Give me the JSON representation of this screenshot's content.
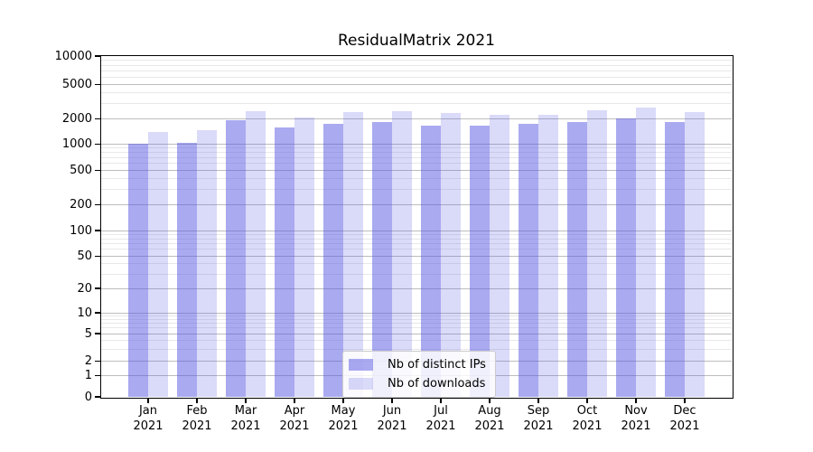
{
  "title": "ResidualMatrix 2021",
  "colors": {
    "series1": "rgba(85,85,226,0.5)",
    "series2": "rgba(85,85,226,0.22)",
    "grid_major": "#bdbdbd",
    "grid_minor": "#e8e8e8",
    "spine": "#000000"
  },
  "legend": {
    "items": [
      {
        "label": "Nb of distinct IPs",
        "color_key": "series1"
      },
      {
        "label": "Nb of downloads",
        "color_key": "series2"
      }
    ]
  },
  "chart_data": {
    "type": "bar",
    "title": "ResidualMatrix 2021",
    "categories": [
      "Jan 2021",
      "Feb 2021",
      "Mar 2021",
      "Apr 2021",
      "May 2021",
      "Jun 2021",
      "Jul 2021",
      "Aug 2021",
      "Sep 2021",
      "Oct 2021",
      "Nov 2021",
      "Dec 2021"
    ],
    "series": [
      {
        "name": "Nb of distinct IPs",
        "values": [
          1020,
          1030,
          1930,
          1600,
          1760,
          1850,
          1650,
          1650,
          1770,
          1860,
          2030,
          1830
        ]
      },
      {
        "name": "Nb of downloads",
        "values": [
          1400,
          1460,
          2490,
          2080,
          2390,
          2440,
          2340,
          2250,
          2260,
          2510,
          2700,
          2430
        ]
      }
    ],
    "xlabel": "",
    "ylabel": "",
    "yscale": "symlog",
    "ylim": [
      0,
      10000
    ],
    "y_ticks": [
      0,
      1,
      2,
      5,
      10,
      20,
      50,
      100,
      200,
      500,
      1000,
      2000,
      5000,
      10000
    ],
    "y_minor_ticks": [
      3,
      4,
      6,
      7,
      8,
      9,
      30,
      40,
      60,
      70,
      80,
      90,
      300,
      400,
      600,
      700,
      800,
      900,
      3000,
      4000,
      6000,
      7000,
      8000,
      9000
    ],
    "grid": "both",
    "legend_position": "lower center"
  }
}
